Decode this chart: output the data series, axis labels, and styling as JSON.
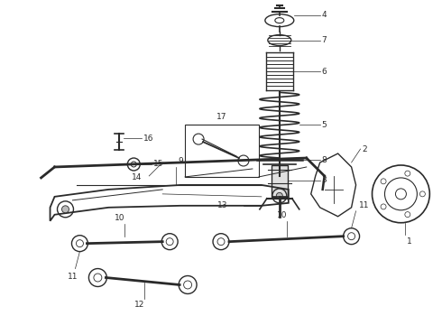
{
  "bg_color": "#ffffff",
  "line_color": "#2a2a2a",
  "fig_width": 4.9,
  "fig_height": 3.6,
  "dpi": 100
}
